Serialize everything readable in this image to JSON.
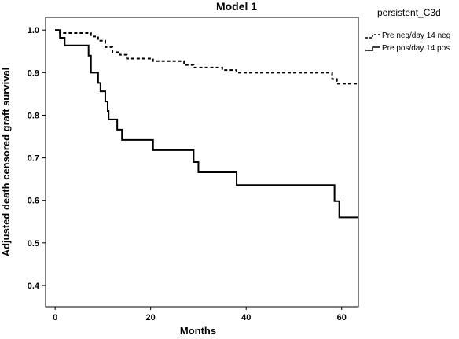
{
  "chart_data": {
    "type": "line",
    "title": "Model 1",
    "xlabel": "Months",
    "ylabel": "Adjusted death censored graft survival",
    "xlim": [
      -2,
      63.5
    ],
    "ylim": [
      0.35,
      1.03
    ],
    "xticks": [
      0,
      20,
      40,
      60
    ],
    "yticks": [
      0.4,
      0.5,
      0.6,
      0.7,
      0.8,
      0.9,
      1.0
    ],
    "xtick_labels": [
      "0",
      "20",
      "40",
      "60"
    ],
    "ytick_labels": [
      "0.4",
      "0.5",
      "0.6",
      "0.7",
      "0.8",
      "0.9",
      "1.0"
    ],
    "legend_title": "persistent_C3d",
    "legend_position": "right",
    "grid": false,
    "series": [
      {
        "name": "Pre neg/day 14 neg",
        "style": "dashed",
        "color": "#000000",
        "points": [
          [
            0,
            1.0
          ],
          [
            1,
            1.0
          ],
          [
            1,
            0.993
          ],
          [
            7.5,
            0.993
          ],
          [
            7.5,
            0.985
          ],
          [
            9,
            0.985
          ],
          [
            9,
            0.975
          ],
          [
            10.5,
            0.975
          ],
          [
            10.5,
            0.96
          ],
          [
            12,
            0.96
          ],
          [
            12,
            0.948
          ],
          [
            13.5,
            0.948
          ],
          [
            13.5,
            0.942
          ],
          [
            15,
            0.942
          ],
          [
            15,
            0.933
          ],
          [
            20.5,
            0.933
          ],
          [
            20.5,
            0.927
          ],
          [
            27,
            0.927
          ],
          [
            27,
            0.918
          ],
          [
            29,
            0.918
          ],
          [
            29,
            0.912
          ],
          [
            35,
            0.912
          ],
          [
            35,
            0.906
          ],
          [
            38,
            0.906
          ],
          [
            38,
            0.9
          ],
          [
            58,
            0.9
          ],
          [
            58,
            0.885
          ],
          [
            59,
            0.885
          ],
          [
            59,
            0.874
          ],
          [
            63.5,
            0.874
          ]
        ]
      },
      {
        "name": "Pre pos/day 14 pos",
        "style": "solid",
        "color": "#000000",
        "points": [
          [
            0,
            1.0
          ],
          [
            1,
            1.0
          ],
          [
            1,
            0.982
          ],
          [
            2,
            0.982
          ],
          [
            2,
            0.964
          ],
          [
            7,
            0.964
          ],
          [
            7,
            0.94
          ],
          [
            7.5,
            0.94
          ],
          [
            7.5,
            0.9
          ],
          [
            9,
            0.9
          ],
          [
            9,
            0.876
          ],
          [
            9.5,
            0.876
          ],
          [
            9.5,
            0.856
          ],
          [
            10.5,
            0.856
          ],
          [
            10.5,
            0.832
          ],
          [
            11,
            0.832
          ],
          [
            11,
            0.81
          ],
          [
            11.2,
            0.81
          ],
          [
            11.2,
            0.79
          ],
          [
            13,
            0.79
          ],
          [
            13,
            0.766
          ],
          [
            14,
            0.766
          ],
          [
            14,
            0.742
          ],
          [
            20.5,
            0.742
          ],
          [
            20.5,
            0.718
          ],
          [
            29,
            0.718
          ],
          [
            29,
            0.69
          ],
          [
            30,
            0.69
          ],
          [
            30,
            0.666
          ],
          [
            38,
            0.666
          ],
          [
            38,
            0.636
          ],
          [
            58.5,
            0.636
          ],
          [
            58.5,
            0.598
          ],
          [
            59.5,
            0.598
          ],
          [
            59.5,
            0.56
          ],
          [
            63.5,
            0.56
          ]
        ]
      }
    ]
  }
}
